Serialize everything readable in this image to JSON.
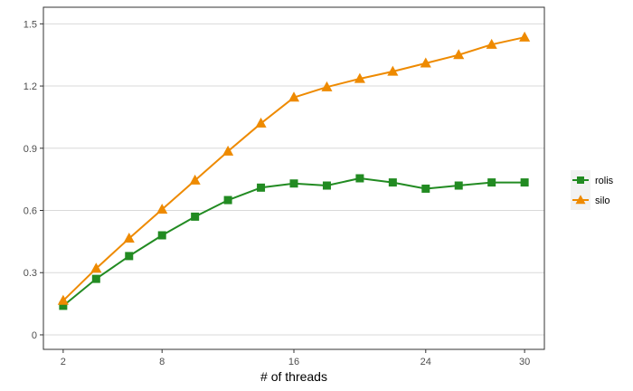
{
  "chart_data": {
    "type": "line",
    "title": "",
    "xlabel": "# of threads",
    "ylabel": "",
    "x": [
      2,
      4,
      6,
      8,
      10,
      12,
      14,
      16,
      18,
      20,
      22,
      24,
      26,
      28,
      30
    ],
    "xticks": [
      2,
      8,
      16,
      24,
      30
    ],
    "yticks": [
      0,
      0.3,
      0.6,
      0.9,
      1.2,
      1.5
    ],
    "ytick_labels": [
      "0",
      "0.3",
      "0.6",
      "0.9",
      "1.2",
      "1.5"
    ],
    "xlim": [
      0.8,
      31.2
    ],
    "ylim": [
      -0.07,
      1.58
    ],
    "grid": "horizontal",
    "legend_position": "right",
    "series": [
      {
        "name": "rolis",
        "color": "#228B22",
        "marker": "square",
        "values": [
          0.14,
          0.27,
          0.38,
          0.48,
          0.57,
          0.65,
          0.71,
          0.73,
          0.72,
          0.755,
          0.735,
          0.705,
          0.72,
          0.735,
          0.735
        ]
      },
      {
        "name": "silo",
        "color": "#EE8A00",
        "marker": "triangle",
        "values": [
          0.165,
          0.32,
          0.465,
          0.605,
          0.745,
          0.885,
          1.02,
          1.145,
          1.195,
          1.235,
          1.27,
          1.31,
          1.35,
          1.4,
          1.435
        ]
      }
    ]
  }
}
